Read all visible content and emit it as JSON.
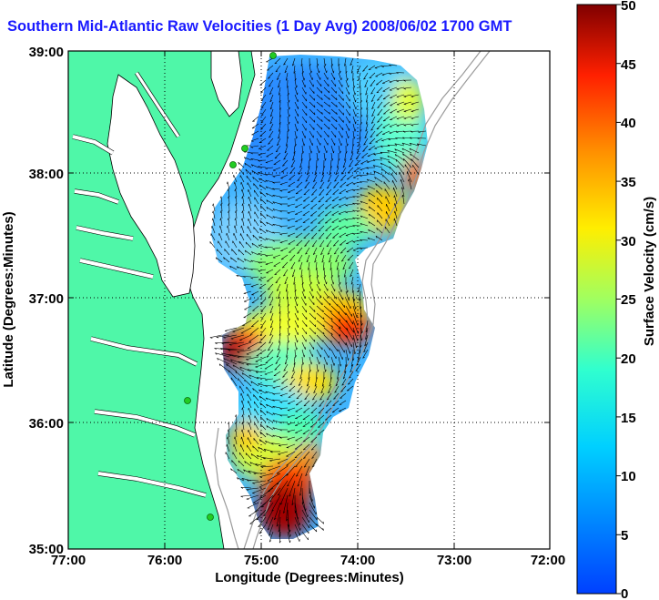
{
  "title": "Southern Mid-Atlantic Raw Velocities (1 Day Avg) 2008/06/02 1700 GMT",
  "map": {
    "xlabel": "Longitude (Degrees:Minutes)",
    "ylabel": "Latitude (Degrees:Minutes)",
    "x_ticks": [
      "77:00",
      "76:00",
      "75:00",
      "74:00",
      "73:00",
      "72:00"
    ],
    "y_ticks": [
      "39:00",
      "38:00",
      "37:00",
      "36:00",
      "35:00"
    ],
    "grid": "dotted",
    "colors": {
      "land": "#4ff7a8",
      "water": "#ffffff",
      "frame": "#000000",
      "vector": "#000000",
      "station": "#22cc22"
    }
  },
  "colorbar": {
    "label": "Surface Velocity (cm/s)",
    "ticks": [
      "50",
      "45",
      "40",
      "35",
      "30",
      "25",
      "20",
      "15",
      "10",
      "5",
      "0"
    ],
    "min": 0,
    "max": 50,
    "colormap": "jet"
  }
}
